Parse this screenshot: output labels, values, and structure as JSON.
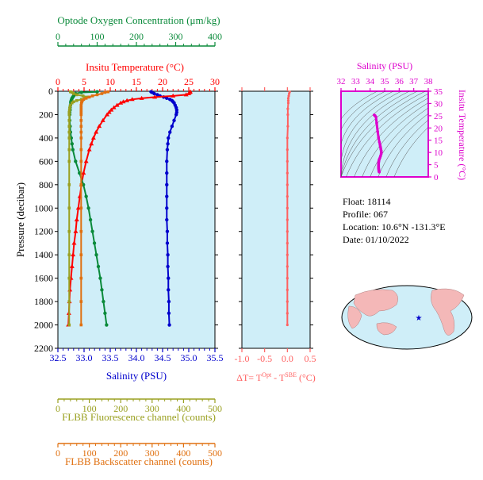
{
  "colors": {
    "oxygen": "#0a8a3a",
    "temperature": "#ff0000",
    "salinity": "#0000cc",
    "fluorescence": "#9aa020",
    "backscatter": "#e07010",
    "delta": "#ff6060",
    "ts": "#dd00cc",
    "panel": "#cfeef8"
  },
  "info": {
    "float": "Float:  18114",
    "profile": "Profile:  067",
    "location": "Location:  10.6°N  -131.3°E",
    "date": "Date:  01/10/2022"
  },
  "chart_data": [
    {
      "type": "line",
      "panel": "main-profile",
      "ylabel": "Pressure (decibar)",
      "ylim": [
        2200,
        0
      ],
      "yticks": [
        "0",
        "200",
        "400",
        "600",
        "800",
        "1000",
        "1200",
        "1400",
        "1600",
        "1800",
        "2000",
        "2200"
      ],
      "axes": {
        "oxygen": {
          "title": "Optode Oxygen Concentration (μm/kg)",
          "ticks": [
            "0",
            "100",
            "200",
            "300",
            "400"
          ],
          "range": [
            0,
            400
          ]
        },
        "temperature": {
          "title": "Insitu Temperature (°C)",
          "ticks": [
            "0",
            "5",
            "10",
            "15",
            "20",
            "25",
            "30"
          ],
          "range": [
            0,
            30
          ]
        },
        "salinity": {
          "title": "Salinity (PSU)",
          "ticks": [
            "32.5",
            "33.0",
            "33.5",
            "34.0",
            "34.5",
            "35.0",
            "35.5"
          ],
          "range": [
            32.5,
            35.5
          ]
        },
        "fluorescence": {
          "title": "FLBB Fluorescence channel (counts)",
          "ticks": [
            "0",
            "100",
            "200",
            "300",
            "400",
            "500"
          ],
          "range": [
            0,
            500
          ]
        },
        "backscatter": {
          "title": "FLBB Backscatter channel (counts)",
          "ticks": [
            "0",
            "100",
            "200",
            "300",
            "400",
            "500"
          ],
          "range": [
            0,
            500
          ]
        }
      },
      "series": [
        {
          "key": "salinity",
          "pressure": [
            5,
            10,
            20,
            30,
            40,
            50,
            60,
            70,
            80,
            90,
            100,
            120,
            140,
            160,
            180,
            200,
            250,
            300,
            350,
            400,
            450,
            500,
            600,
            700,
            800,
            900,
            1000,
            1100,
            1200,
            1300,
            1400,
            1500,
            1600,
            1700,
            1800,
            1900,
            2000
          ],
          "values": [
            34.28,
            34.3,
            34.34,
            34.4,
            34.45,
            34.52,
            34.58,
            34.64,
            34.68,
            34.7,
            34.72,
            34.74,
            34.76,
            34.77,
            34.77,
            34.76,
            34.72,
            34.68,
            34.64,
            34.61,
            34.6,
            34.59,
            34.58,
            34.58,
            34.58,
            34.58,
            34.58,
            34.58,
            34.59,
            34.59,
            34.6,
            34.6,
            34.61,
            34.61,
            34.62,
            34.62,
            34.63
          ]
        },
        {
          "key": "temperature",
          "pressure": [
            5,
            10,
            20,
            30,
            40,
            50,
            60,
            70,
            80,
            90,
            100,
            120,
            140,
            160,
            180,
            200,
            250,
            300,
            350,
            400,
            450,
            500,
            600,
            700,
            800,
            900,
            1000,
            1100,
            1200,
            1300,
            1400,
            1500,
            1600,
            1700,
            1800,
            1900,
            2000
          ],
          "values": [
            25.3,
            25.2,
            25.0,
            24.5,
            22.0,
            18.5,
            16.0,
            14.2,
            13.2,
            12.5,
            12.0,
            11.3,
            10.7,
            10.2,
            9.8,
            9.4,
            8.6,
            7.9,
            7.3,
            6.8,
            6.4,
            6.0,
            5.4,
            4.9,
            4.5,
            4.2,
            3.9,
            3.6,
            3.4,
            3.1,
            2.9,
            2.7,
            2.5,
            2.3,
            2.2,
            2.1,
            2.0
          ]
        },
        {
          "key": "oxygen",
          "pressure": [
            5,
            10,
            20,
            30,
            40,
            50,
            60,
            70,
            80,
            90,
            100,
            120,
            140,
            160,
            180,
            200,
            250,
            300,
            350,
            400,
            450,
            500,
            600,
            700,
            800,
            900,
            1000,
            1100,
            1200,
            1300,
            1400,
            1500,
            1600,
            1700,
            1800,
            1900,
            2000
          ],
          "values": [
            100,
            60,
            45,
            42,
            40,
            38,
            36,
            35,
            34,
            33,
            33,
            32,
            31,
            31,
            30,
            30,
            30,
            31,
            32,
            34,
            36,
            38,
            45,
            55,
            65,
            72,
            78,
            83,
            88,
            93,
            98,
            103,
            108,
            112,
            116,
            120,
            124
          ]
        },
        {
          "key": "fluorescence",
          "pressure": [
            5,
            10,
            20,
            30,
            40,
            50,
            60,
            70,
            80,
            90,
            100,
            120,
            140,
            160,
            180,
            200,
            250,
            300,
            350,
            400,
            500,
            600,
            800,
            1000,
            1200,
            1400,
            1600,
            1800,
            2000
          ],
          "values": [
            40,
            45,
            50,
            60,
            80,
            95,
            85,
            75,
            60,
            50,
            45,
            40,
            38,
            37,
            36,
            36,
            36,
            36,
            36,
            36,
            36,
            36,
            36,
            36,
            36,
            36,
            36,
            36,
            36
          ]
        },
        {
          "key": "backscatter",
          "pressure": [
            5,
            10,
            20,
            30,
            40,
            50,
            60,
            70,
            80,
            90,
            100,
            120,
            140,
            160,
            180,
            200,
            250,
            300,
            350,
            400,
            500,
            600,
            800,
            1000,
            1200,
            1400,
            1600,
            1800,
            2000
          ],
          "values": [
            160,
            150,
            140,
            125,
            110,
            100,
            90,
            82,
            78,
            76,
            75,
            74,
            74,
            74,
            74,
            74,
            74,
            74,
            74,
            74,
            74,
            74,
            74,
            74,
            74,
            74,
            74,
            74,
            74
          ]
        }
      ]
    },
    {
      "type": "line",
      "panel": "delta-t",
      "xlabel": "ΔT= T^Opt - T^SBE (°C)",
      "xlim": [
        -1.0,
        0.5
      ],
      "xticks": [
        "-1.0",
        "-0.5",
        "0.0",
        "0.5"
      ],
      "series": [
        {
          "name": "",
          "pressure": [
            5,
            20,
            40,
            60,
            80,
            100,
            150,
            200,
            300,
            400,
            500,
            600,
            700,
            800,
            900,
            1000,
            1100,
            1200,
            1300,
            1400,
            1500,
            1600,
            1700,
            1800,
            1900,
            2000
          ],
          "values": [
            0.05,
            0.04,
            0.03,
            0.02,
            0.02,
            0.02,
            0.01,
            0.01,
            0.01,
            0.0,
            0.0,
            0.0,
            0.0,
            0.0,
            0.0,
            0.0,
            0.0,
            0.0,
            0.0,
            0.0,
            0.0,
            0.0,
            0.0,
            0.0,
            0.0,
            0.0
          ]
        }
      ]
    },
    {
      "type": "scatter",
      "panel": "ts-diagram",
      "xlabel": "Salinity (PSU)",
      "ylabel": "Insitu Temperature (°C)",
      "xlim": [
        32,
        38
      ],
      "ylim": [
        0,
        35
      ],
      "xticks": [
        "32",
        "33",
        "34",
        "35",
        "36",
        "37",
        "38"
      ],
      "yticks": [
        "0",
        "5",
        "10",
        "15",
        "20",
        "25",
        "30",
        "35"
      ],
      "salinity": [
        34.28,
        34.3,
        34.34,
        34.4,
        34.45,
        34.52,
        34.58,
        34.64,
        34.68,
        34.7,
        34.72,
        34.74,
        34.76,
        34.77,
        34.77,
        34.76,
        34.72,
        34.68,
        34.64,
        34.61,
        34.6,
        34.59,
        34.58,
        34.58,
        34.58,
        34.58,
        34.58,
        34.58,
        34.59,
        34.59,
        34.6,
        34.6,
        34.61,
        34.61,
        34.62,
        34.62,
        34.63
      ],
      "temperature": [
        25.3,
        25.2,
        25.0,
        24.5,
        22.0,
        18.5,
        16.0,
        14.2,
        13.2,
        12.5,
        12.0,
        11.3,
        10.7,
        10.2,
        9.8,
        9.4,
        8.6,
        7.9,
        7.3,
        6.8,
        6.4,
        6.0,
        5.4,
        4.9,
        4.5,
        4.2,
        3.9,
        3.6,
        3.4,
        3.1,
        2.9,
        2.7,
        2.5,
        2.3,
        2.2,
        2.1,
        2.0
      ]
    }
  ]
}
